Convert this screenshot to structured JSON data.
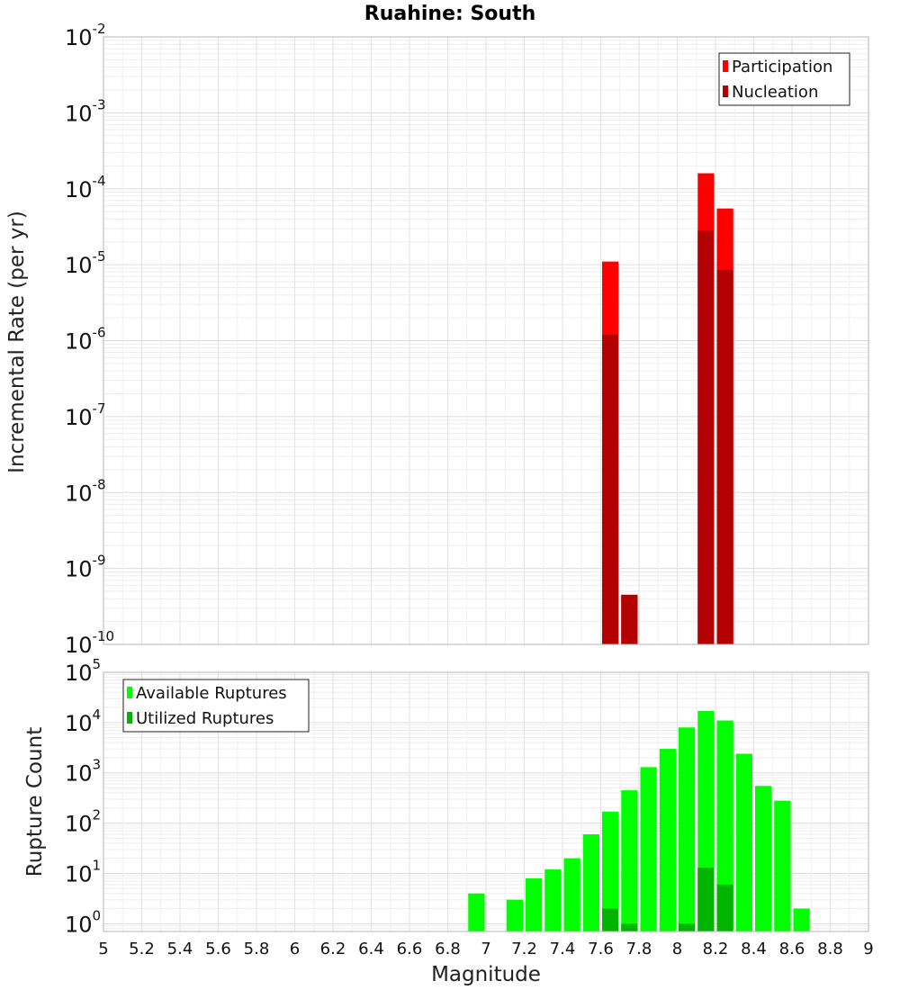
{
  "chart_data": [
    {
      "type": "bar",
      "title": "Ruahine: South",
      "xlabel": "",
      "ylabel": "Incremental Rate (per yr)",
      "yscale": "log",
      "xlim": [
        5,
        9
      ],
      "ylim": [
        1e-10,
        0.01
      ],
      "bar_width": 0.1,
      "x_ticks": [
        "5",
        "5.2",
        "5.4",
        "5.6",
        "5.8",
        "6",
        "6.2",
        "6.4",
        "6.6",
        "6.8",
        "7",
        "7.2",
        "7.4",
        "7.6",
        "7.8",
        "8",
        "8.2",
        "8.4",
        "8.6",
        "8.8",
        "9"
      ],
      "y_ticks": [
        {
          "base": "10",
          "exp": "-2"
        },
        {
          "base": "10",
          "exp": "-3"
        },
        {
          "base": "10",
          "exp": "-4"
        },
        {
          "base": "10",
          "exp": "-5"
        },
        {
          "base": "10",
          "exp": "-6"
        },
        {
          "base": "10",
          "exp": "-7"
        },
        {
          "base": "10",
          "exp": "-8"
        },
        {
          "base": "10",
          "exp": "-9"
        },
        {
          "base": "10",
          "exp": "-10"
        }
      ],
      "legend_position": "top-right",
      "grid": true,
      "series": [
        {
          "name": "Participation",
          "color": "#ff0000",
          "x": [
            7.65,
            7.75,
            8.15,
            8.25
          ],
          "values": [
            1.1e-05,
            4.5e-10,
            0.00016,
            5.5e-05
          ]
        },
        {
          "name": "Nucleation",
          "color": "#b30000",
          "x": [
            7.65,
            7.75,
            8.15,
            8.25
          ],
          "values": [
            1.2e-06,
            4.5e-10,
            2.8e-05,
            8.5e-06
          ]
        }
      ]
    },
    {
      "type": "bar",
      "title": "",
      "xlabel": "Magnitude",
      "ylabel": "Rupture Count",
      "yscale": "log",
      "xlim": [
        5,
        9
      ],
      "ylim": [
        0.7,
        100000.0
      ],
      "bar_width": 0.1,
      "y_ticks": [
        {
          "base": "10",
          "exp": "5"
        },
        {
          "base": "10",
          "exp": "4"
        },
        {
          "base": "10",
          "exp": "3"
        },
        {
          "base": "10",
          "exp": "2"
        },
        {
          "base": "10",
          "exp": "1"
        },
        {
          "base": "10",
          "exp": "0"
        }
      ],
      "legend_position": "top-left",
      "grid": true,
      "series": [
        {
          "name": "Available Ruptures",
          "color": "#00ff00",
          "x": [
            6.95,
            7.15,
            7.25,
            7.35,
            7.45,
            7.55,
            7.65,
            7.75,
            7.85,
            7.95,
            8.05,
            8.15,
            8.25,
            8.35,
            8.45,
            8.55,
            8.65
          ],
          "values": [
            4,
            3,
            8,
            12,
            20,
            60,
            170,
            450,
            1300,
            3000,
            8000,
            17000,
            11000,
            2400,
            550,
            280,
            2
          ]
        },
        {
          "name": "Utilized Ruptures",
          "color": "#00b400",
          "x": [
            7.65,
            7.75,
            8.05,
            8.15,
            8.25
          ],
          "values": [
            2,
            1,
            1,
            13,
            6
          ]
        }
      ]
    }
  ]
}
